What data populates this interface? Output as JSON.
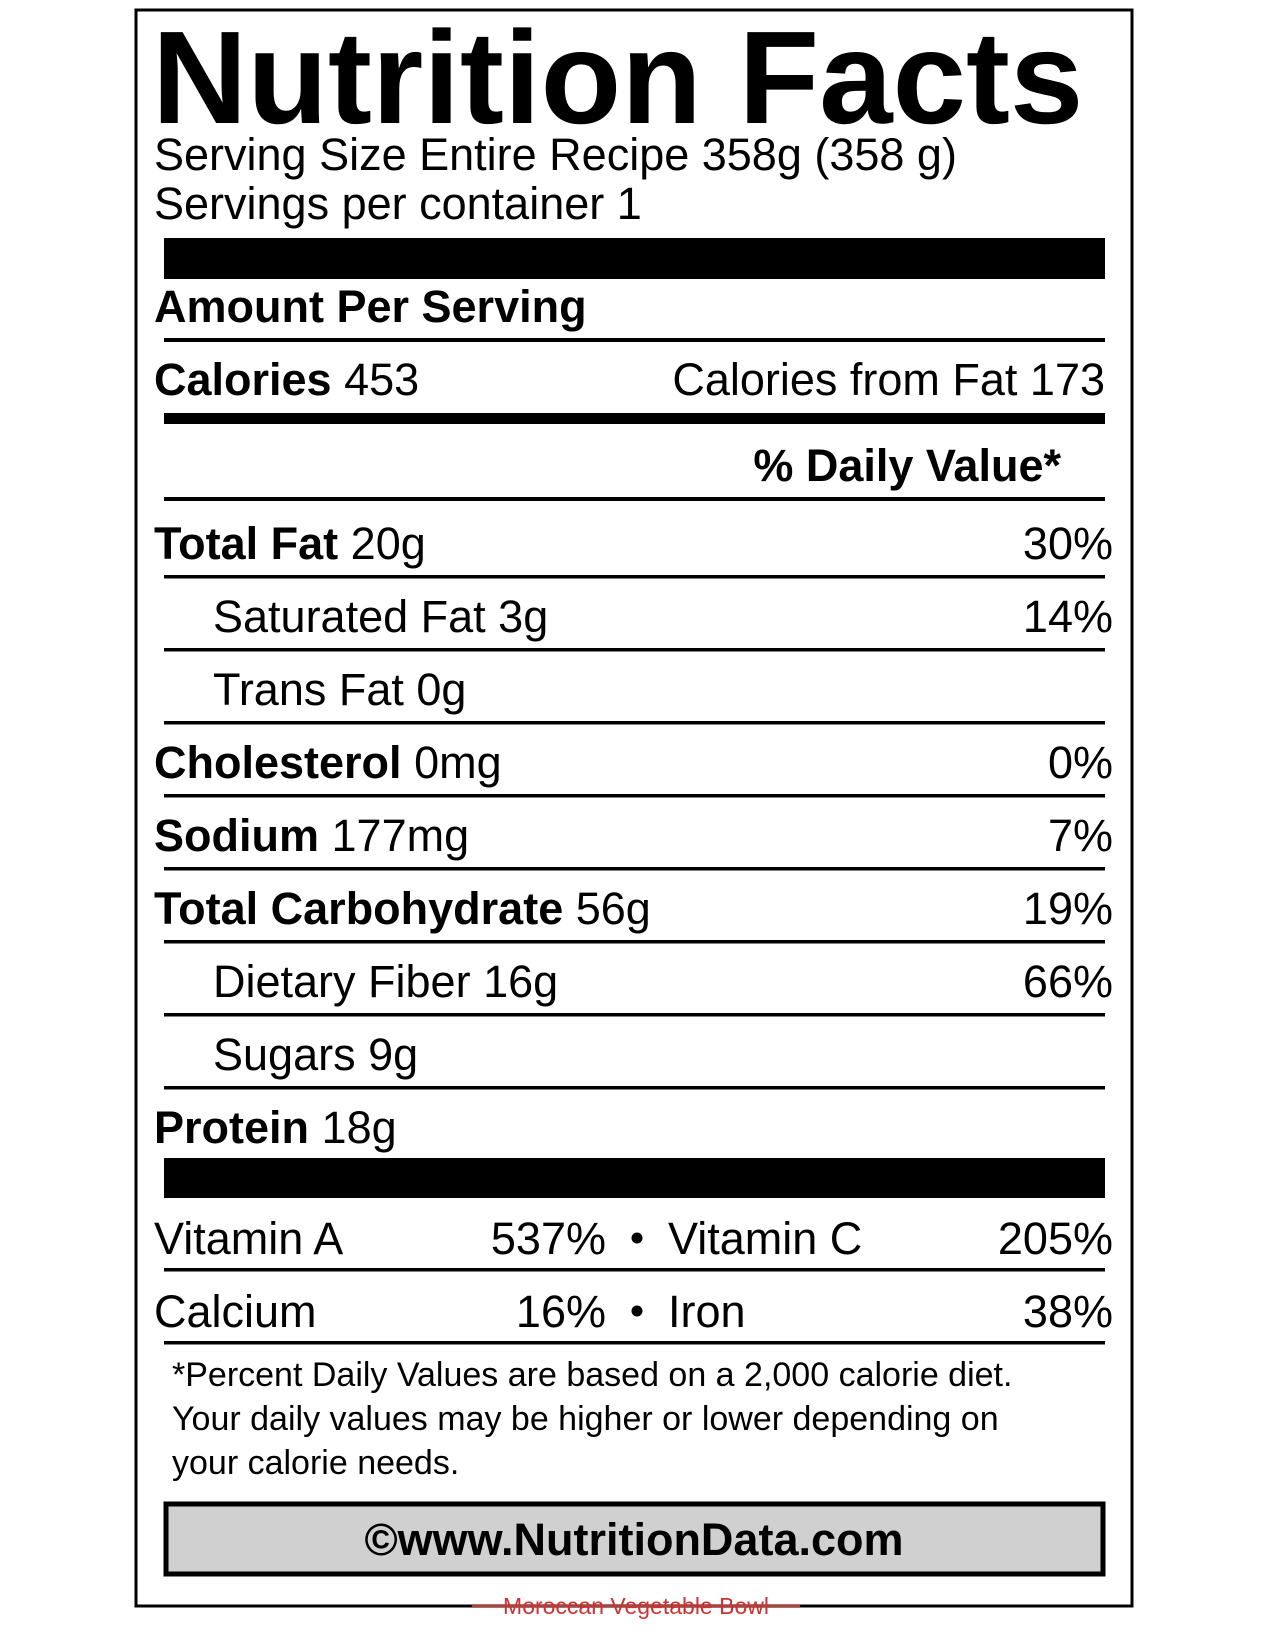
{
  "label": {
    "title": "Nutrition Facts",
    "serving_size": "Serving Size Entire Recipe 358g (358 g)",
    "servings": "Servings per container 1",
    "amount_header": "Amount Per Serving",
    "calories": {
      "name": "Calories",
      "amount": "453"
    },
    "calories_from_fat": "Calories from Fat 173",
    "dv_header": "% Daily Value*",
    "nutrients": [
      {
        "name": "Total Fat",
        "amount": "20g",
        "dv": "30%"
      },
      {
        "name": "Saturated Fat 3g",
        "dv": "14%",
        "indent": true
      },
      {
        "name": "Trans Fat 0g",
        "indent": true
      },
      {
        "name": "Cholesterol",
        "amount": "0mg",
        "dv": "0%"
      },
      {
        "name": "Sodium",
        "amount": "177mg",
        "dv": "7%"
      },
      {
        "name": "Total Carbohydrate",
        "amount": "56g",
        "dv": "19%"
      },
      {
        "name": "Dietary Fiber 16g",
        "dv": "66%",
        "indent": true
      },
      {
        "name": "Sugars 9g",
        "indent": true
      },
      {
        "name": "Protein",
        "amount": "18g"
      }
    ],
    "vitamins": [
      [
        {
          "name": "Vitamin A",
          "dv": "537%"
        },
        {
          "name": "Vitamin C",
          "dv": "205%"
        }
      ],
      [
        {
          "name": "Calcium",
          "dv": "16%"
        },
        {
          "name": "Iron",
          "dv": "38%"
        }
      ]
    ],
    "footnote": [
      "*Percent Daily Values are based on a 2,000 calorie diet.",
      "Your daily values may be higher or lower depending on",
      "your calorie needs."
    ],
    "copyright": "©www.NutritionData.com",
    "recipe_name": "Moroccan Vegetable Bowl"
  }
}
